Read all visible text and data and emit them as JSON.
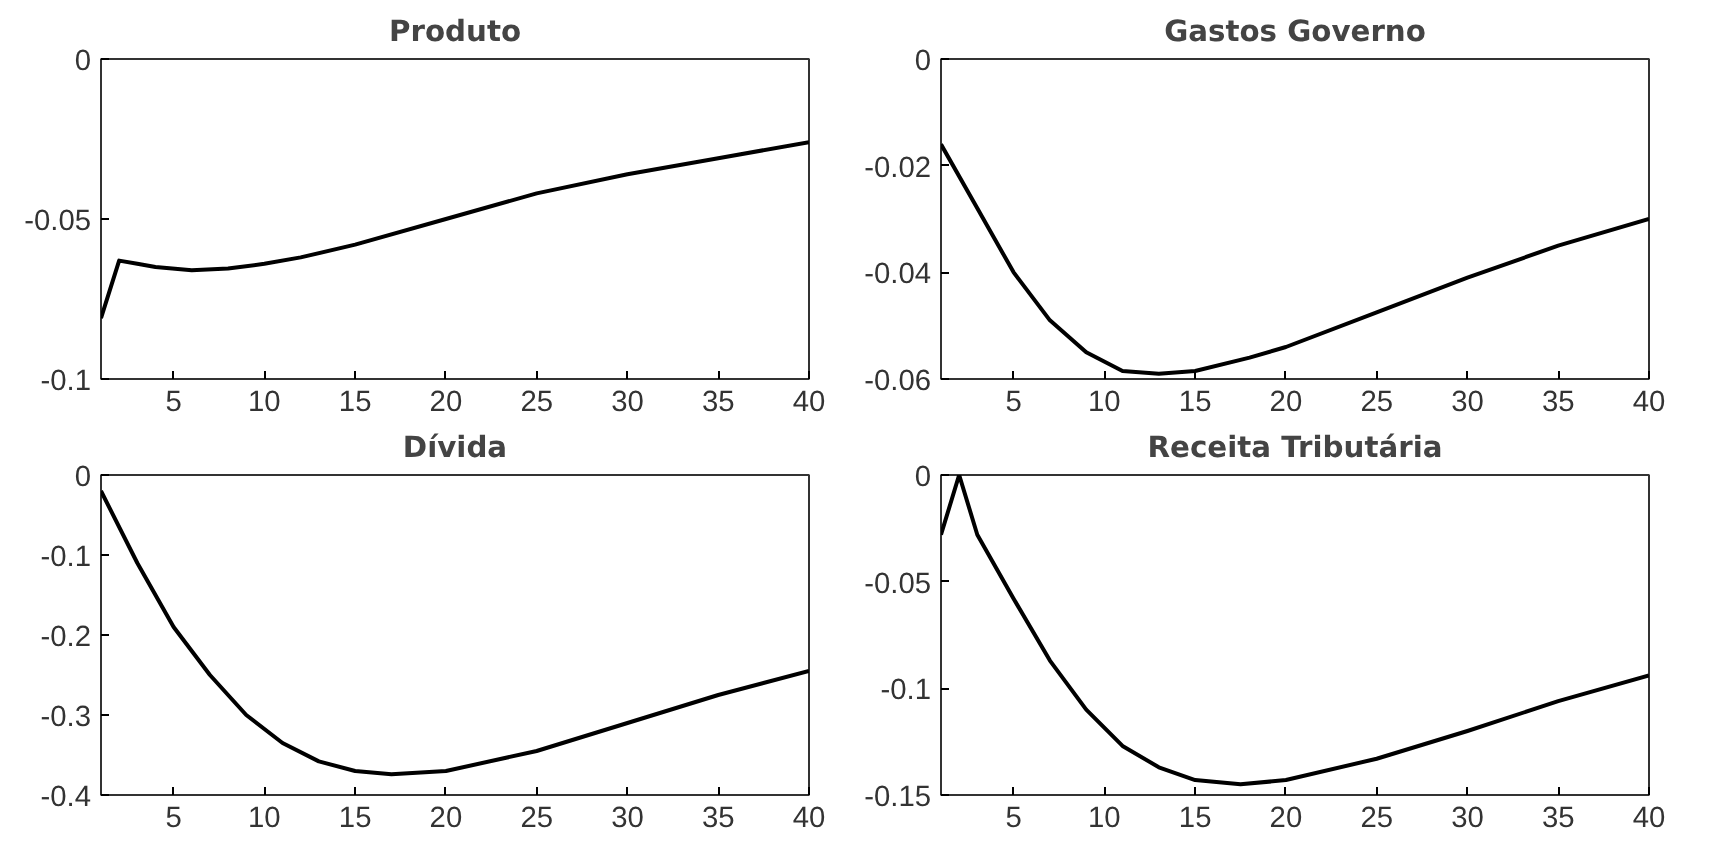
{
  "chart_data": [
    {
      "type": "line",
      "title": "Produto",
      "x": [
        1,
        2,
        3,
        4,
        6,
        8,
        10,
        12,
        15,
        20,
        25,
        30,
        35,
        40
      ],
      "series": [
        {
          "color": "#000000",
          "values": [
            -0.081,
            -0.063,
            -0.064,
            -0.065,
            -0.066,
            -0.0655,
            -0.064,
            -0.062,
            -0.058,
            -0.05,
            -0.042,
            -0.036,
            -0.031,
            -0.026
          ]
        }
      ],
      "xlim": [
        1,
        40
      ],
      "xticks": [
        5,
        10,
        15,
        20,
        25,
        30,
        35,
        40
      ],
      "ylim": [
        -0.1,
        0
      ],
      "yticks": [
        -0.1,
        -0.05,
        0
      ]
    },
    {
      "type": "line",
      "title": "Gastos Governo",
      "x": [
        1,
        3,
        5,
        7,
        9,
        11,
        13,
        15,
        18,
        20,
        25,
        30,
        35,
        40
      ],
      "series": [
        {
          "color": "#000000",
          "values": [
            -0.016,
            -0.028,
            -0.04,
            -0.049,
            -0.055,
            -0.0585,
            -0.059,
            -0.0585,
            -0.056,
            -0.054,
            -0.0475,
            -0.041,
            -0.035,
            -0.03
          ]
        }
      ],
      "xlim": [
        1,
        40
      ],
      "xticks": [
        5,
        10,
        15,
        20,
        25,
        30,
        35,
        40
      ],
      "ylim": [
        -0.06,
        0
      ],
      "yticks": [
        -0.06,
        -0.04,
        -0.02,
        0
      ]
    },
    {
      "type": "line",
      "title": "Dívida",
      "x": [
        1,
        3,
        5,
        7,
        9,
        11,
        13,
        15,
        17,
        20,
        25,
        30,
        35,
        40
      ],
      "series": [
        {
          "color": "#000000",
          "values": [
            -0.02,
            -0.11,
            -0.19,
            -0.25,
            -0.3,
            -0.335,
            -0.358,
            -0.37,
            -0.374,
            -0.37,
            -0.345,
            -0.31,
            -0.275,
            -0.245
          ]
        }
      ],
      "xlim": [
        1,
        40
      ],
      "xticks": [
        5,
        10,
        15,
        20,
        25,
        30,
        35,
        40
      ],
      "ylim": [
        -0.4,
        0
      ],
      "yticks": [
        -0.4,
        -0.3,
        -0.2,
        -0.1,
        0
      ]
    },
    {
      "type": "line",
      "title": "Receita Tributária",
      "x": [
        1,
        2,
        3,
        5,
        7,
        9,
        11,
        13,
        15,
        17.5,
        20,
        25,
        30,
        35,
        40
      ],
      "series": [
        {
          "color": "#000000",
          "values": [
            -0.028,
            0,
            -0.028,
            -0.058,
            -0.087,
            -0.11,
            -0.127,
            -0.137,
            -0.143,
            -0.145,
            -0.143,
            -0.133,
            -0.12,
            -0.106,
            -0.094
          ]
        }
      ],
      "xlim": [
        1,
        40
      ],
      "xticks": [
        5,
        10,
        15,
        20,
        25,
        30,
        35,
        40
      ],
      "ylim": [
        -0.15,
        0
      ],
      "yticks": [
        -0.15,
        -0.1,
        -0.05,
        0
      ]
    }
  ]
}
